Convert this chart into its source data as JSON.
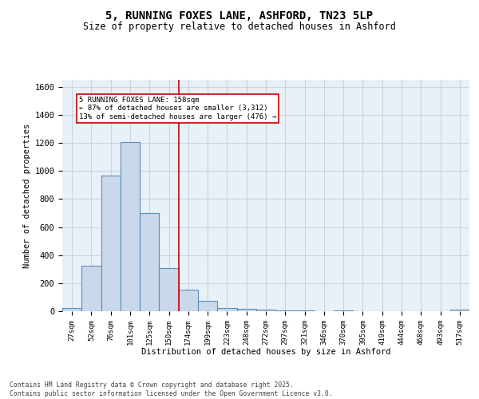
{
  "title_line1": "5, RUNNING FOXES LANE, ASHFORD, TN23 5LP",
  "title_line2": "Size of property relative to detached houses in Ashford",
  "xlabel": "Distribution of detached houses by size in Ashford",
  "ylabel": "Number of detached properties",
  "bar_labels": [
    "27sqm",
    "52sqm",
    "76sqm",
    "101sqm",
    "125sqm",
    "150sqm",
    "174sqm",
    "199sqm",
    "223sqm",
    "248sqm",
    "272sqm",
    "297sqm",
    "321sqm",
    "346sqm",
    "370sqm",
    "395sqm",
    "419sqm",
    "444sqm",
    "468sqm",
    "493sqm",
    "517sqm"
  ],
  "bar_values": [
    22,
    322,
    970,
    1205,
    700,
    308,
    155,
    75,
    25,
    15,
    10,
    5,
    3,
    2,
    8,
    2,
    2,
    2,
    2,
    2,
    12
  ],
  "bar_color": "#c9d9eb",
  "bar_edge_color": "#5b8db8",
  "vline_x_idx": 5.5,
  "vline_color": "#cc0000",
  "annotation_text": "5 RUNNING FOXES LANE: 158sqm\n← 87% of detached houses are smaller (3,312)\n13% of semi-detached houses are larger (476) →",
  "annotation_box_color": "white",
  "annotation_box_edge_color": "#cc0000",
  "ylim": [
    0,
    1650
  ],
  "yticks": [
    0,
    200,
    400,
    600,
    800,
    1000,
    1200,
    1400,
    1600
  ],
  "grid_color": "#c8d4e0",
  "background_color": "#e8f0f8",
  "footer_line1": "Contains HM Land Registry data © Crown copyright and database right 2025.",
  "footer_line2": "Contains public sector information licensed under the Open Government Licence v3.0."
}
